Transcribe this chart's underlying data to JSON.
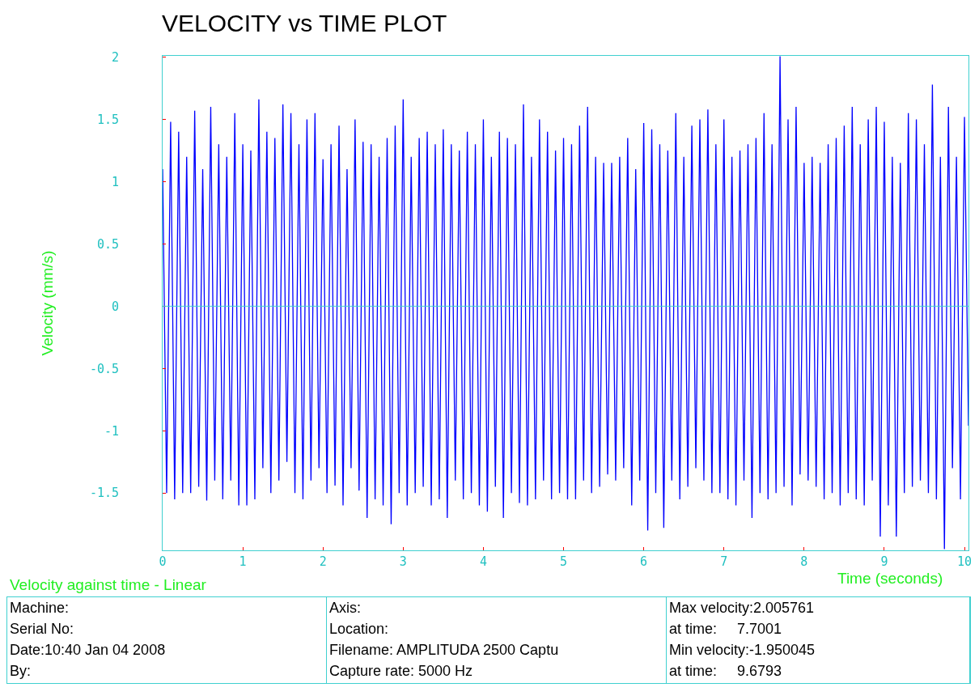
{
  "chart_data": {
    "type": "line",
    "title": "VELOCITY vs TIME PLOT",
    "subtitle": "Velocity against time - Linear",
    "xlabel": "Time (seconds)",
    "ylabel": "Velocity (mm/s)",
    "annotations": [
      "Machine:",
      "Serial No:",
      "Date:10:40 Jan 04 2008",
      "By:",
      "Axis:",
      "Location:",
      "Filename: AMPLITUDA 2500 Captu",
      "Capture rate: 5000 Hz",
      "Max velocity:2.005761",
      "at time:     7.7001",
      "Min velocity:-1.950045",
      "at time:     9.6793"
    ],
    "color": "#0000ff",
    "line_style": "solid",
    "x": [
      0,
      0.05,
      0.1,
      0.15,
      0.2,
      0.25,
      0.3,
      0.35,
      0.4,
      0.45,
      0.5,
      0.55,
      0.6,
      0.65,
      0.7,
      0.75,
      0.8,
      0.85,
      0.9,
      0.95,
      1,
      1.05,
      1.1,
      1.15,
      1.2,
      1.25,
      1.3,
      1.35,
      1.4,
      1.45,
      1.5,
      1.55,
      1.6,
      1.65,
      1.7,
      1.75,
      1.8,
      1.85,
      1.9,
      1.95,
      2,
      2.05,
      2.1,
      2.15,
      2.2,
      2.25,
      2.3,
      2.35,
      2.4,
      2.45,
      2.5,
      2.55,
      2.6,
      2.65,
      2.7,
      2.75,
      2.8,
      2.85,
      2.9,
      2.95,
      3,
      3.05,
      3.1,
      3.15,
      3.2,
      3.25,
      3.3,
      3.35,
      3.4,
      3.45,
      3.5,
      3.55,
      3.6,
      3.65,
      3.7,
      3.75,
      3.8,
      3.85,
      3.9,
      3.95,
      4,
      4.05,
      4.1,
      4.15,
      4.2,
      4.25,
      4.3,
      4.35,
      4.4,
      4.45,
      4.5,
      4.55,
      4.6,
      4.65,
      4.7,
      4.75,
      4.8,
      4.85,
      4.9,
      4.95,
      5,
      5.05,
      5.1,
      5.15,
      5.2,
      5.25,
      5.3,
      5.35,
      5.4,
      5.45,
      5.5,
      5.55,
      5.6,
      5.65,
      5.7,
      5.75,
      5.8,
      5.85,
      5.9,
      5.95,
      6,
      6.05,
      6.1,
      6.15,
      6.2,
      6.25,
      6.3,
      6.35,
      6.4,
      6.45,
      6.5,
      6.55,
      6.6,
      6.65,
      6.7,
      6.75,
      6.8,
      6.85,
      6.9,
      6.95,
      7,
      7.05,
      7.1,
      7.15,
      7.2,
      7.25,
      7.3,
      7.35,
      7.4,
      7.45,
      7.5,
      7.55,
      7.6,
      7.65,
      7.7,
      7.75,
      7.8,
      7.85,
      7.9,
      7.95,
      8,
      8.05,
      8.1,
      8.15,
      8.2,
      8.25,
      8.3,
      8.35,
      8.4,
      8.45,
      8.5,
      8.55,
      8.6,
      8.65,
      8.7,
      8.75,
      8.8,
      8.85,
      8.9,
      8.95,
      9,
      9.05,
      9.1,
      9.15,
      9.2,
      9.25,
      9.3,
      9.35,
      9.4,
      9.45,
      9.5,
      9.55,
      9.6,
      9.65,
      9.7,
      9.75,
      9.8,
      9.85,
      9.9,
      9.95,
      10,
      10.05
    ],
    "values": [
      1.1,
      -1.5,
      1.48,
      -1.55,
      1.4,
      -1.5,
      1.2,
      -1.5,
      1.57,
      -1.45,
      1.1,
      -1.56,
      1.6,
      -1.4,
      1.3,
      -1.55,
      1.2,
      -1.4,
      1.55,
      -1.6,
      1.3,
      -1.6,
      1.25,
      -1.55,
      1.66,
      -1.3,
      1.4,
      -1.5,
      1.35,
      -1.4,
      1.62,
      -1.25,
      1.55,
      -1.5,
      1.3,
      -1.55,
      1.5,
      -1.4,
      1.55,
      -1.3,
      1.18,
      -1.5,
      1.3,
      -1.44,
      1.45,
      -1.6,
      1.1,
      -1.3,
      1.5,
      -1.48,
      1.32,
      -1.7,
      1.3,
      -1.55,
      1.2,
      -1.6,
      1.35,
      -1.75,
      1.45,
      -1.5,
      1.66,
      -1.6,
      1.2,
      -1.5,
      1.35,
      -1.45,
      1.4,
      -1.6,
      1.3,
      -1.55,
      1.42,
      -1.7,
      1.3,
      -1.4,
      1.25,
      -1.55,
      1.4,
      -1.5,
      1.3,
      -1.6,
      1.5,
      -1.65,
      1.2,
      -1.45,
      1.4,
      -1.7,
      1.35,
      -1.5,
      1.3,
      -1.58,
      1.62,
      -1.6,
      1.2,
      -1.55,
      1.5,
      -1.4,
      1.4,
      -1.55,
      1.25,
      -1.5,
      1.35,
      -1.55,
      1.3,
      -1.55,
      1.45,
      -1.4,
      1.6,
      -1.5,
      1.2,
      -1.45,
      1.15,
      -1.35,
      1.15,
      -1.4,
      1.2,
      -1.3,
      1.35,
      -1.6,
      1.1,
      -1.4,
      1.47,
      -1.8,
      1.42,
      -1.5,
      1.3,
      -1.78,
      1.25,
      -1.4,
      1.55,
      -1.55,
      1.2,
      -1.45,
      1.45,
      -1.3,
      1.5,
      -1.4,
      1.58,
      -1.5,
      1.3,
      -1.5,
      1.5,
      -1.55,
      1.2,
      -1.6,
      1.25,
      -1.4,
      1.3,
      -1.7,
      1.35,
      -1.5,
      1.55,
      -1.55,
      1.3,
      -1.5,
      2.006,
      -1.45,
      1.5,
      -1.6,
      1.6,
      -1.35,
      1.15,
      -1.4,
      1.2,
      -1.45,
      1.15,
      -1.55,
      1.3,
      -1.5,
      1.35,
      -1.6,
      1.45,
      -1.5,
      1.6,
      -1.55,
      1.3,
      -1.6,
      1.5,
      -1.4,
      1.6,
      -1.85,
      1.48,
      -1.6,
      1.2,
      -1.85,
      1.15,
      -1.5,
      1.55,
      -1.45,
      1.5,
      -1.4,
      1.3,
      -1.5,
      1.78,
      -1.55,
      1.2,
      -1.95,
      1.6,
      -1.3,
      1.2,
      -1.55,
      1.52,
      -0.96
    ],
    "xlim": [
      0,
      10.05
    ],
    "ylim": [
      -1.96,
      2.01
    ],
    "xticks": [
      0,
      1,
      2,
      3,
      4,
      5,
      6,
      7,
      8,
      9,
      10
    ],
    "yticks": [
      -1.5,
      -1,
      -0.5,
      0,
      0.5,
      1,
      1.5,
      2
    ],
    "ref_lines": [
      {
        "axis": "y",
        "value": 0,
        "label": null,
        "color": "#40d0d0"
      }
    ]
  }
}
